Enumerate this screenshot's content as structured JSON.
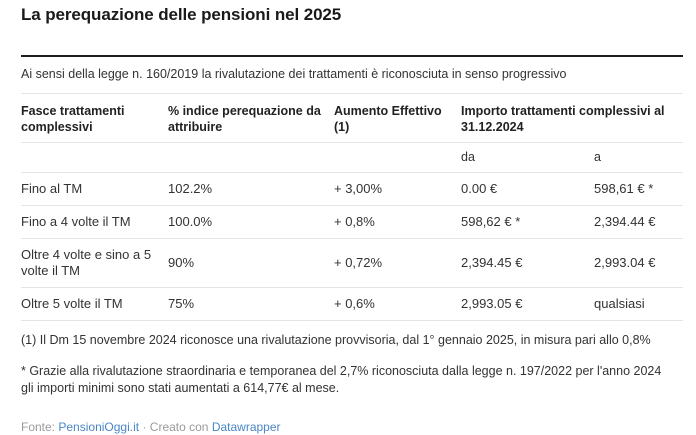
{
  "header": {
    "title": "La perequazione delle pensioni nel 2025",
    "subtitle": "Ai sensi della legge n. 160/2019 la rivalutazione dei trattamenti è riconosciuta in senso progressivo"
  },
  "chart_data": {
    "type": "table",
    "title": "La perequazione delle pensioni nel 2025",
    "subtitle": "Ai sensi della legge n. 160/2019 la rivalutazione dei trattamenti è riconosciuta in senso progressivo",
    "columns": [
      "Fasce trattamenti complessivi",
      "% indice perequazione da attribuire",
      "Aumento Effettivo (1)",
      "Importo trattamenti complessivi al 31.12.2024"
    ],
    "sub_columns": [
      "da",
      "a"
    ],
    "rows": [
      [
        "Fino al TM",
        "102.2%",
        "+ 3,00%",
        "0.00 €",
        "598,61 € *"
      ],
      [
        "Fino a 4 volte il TM",
        "100.0%",
        "+ 0,8%",
        "598,62 € *",
        "2,394.44 €"
      ],
      [
        "Oltre 4 volte e sino a 5 volte il TM",
        "90%",
        "+ 0,72%",
        "2,394.45 €",
        "2,993.04 €"
      ],
      [
        "Oltre 5 volte il TM",
        "75%",
        "+ 0,6%",
        "2,993.05 €",
        "qualsiasi"
      ]
    ]
  },
  "notes": {
    "note1": "(1) Il Dm 15 novembre 2024 riconosce una rivalutazione provvisoria, dal 1° gennaio 2025, in misura pari allo 0,8%",
    "note2": "* Grazie alla rivalutazione straordinaria e temporanea del 2,7% riconosciuta dalla legge n. 197/2022 per l'anno 2024 gli importi minimi sono stati aumentati a 614,77€ al mese."
  },
  "footer": {
    "source_label": "Fonte:",
    "source_link": "PensioniOggi.it",
    "separator": "·",
    "created_label": "Creato con",
    "created_link": "Datawrapper"
  },
  "colors": {
    "title_text": "#1a1a1a",
    "body_text": "#333333",
    "divider_dark": "#1f1f1f",
    "row_border": "#e4e4e4",
    "footer_text": "#9a9a9a",
    "link_blue": "#4a86c6"
  }
}
